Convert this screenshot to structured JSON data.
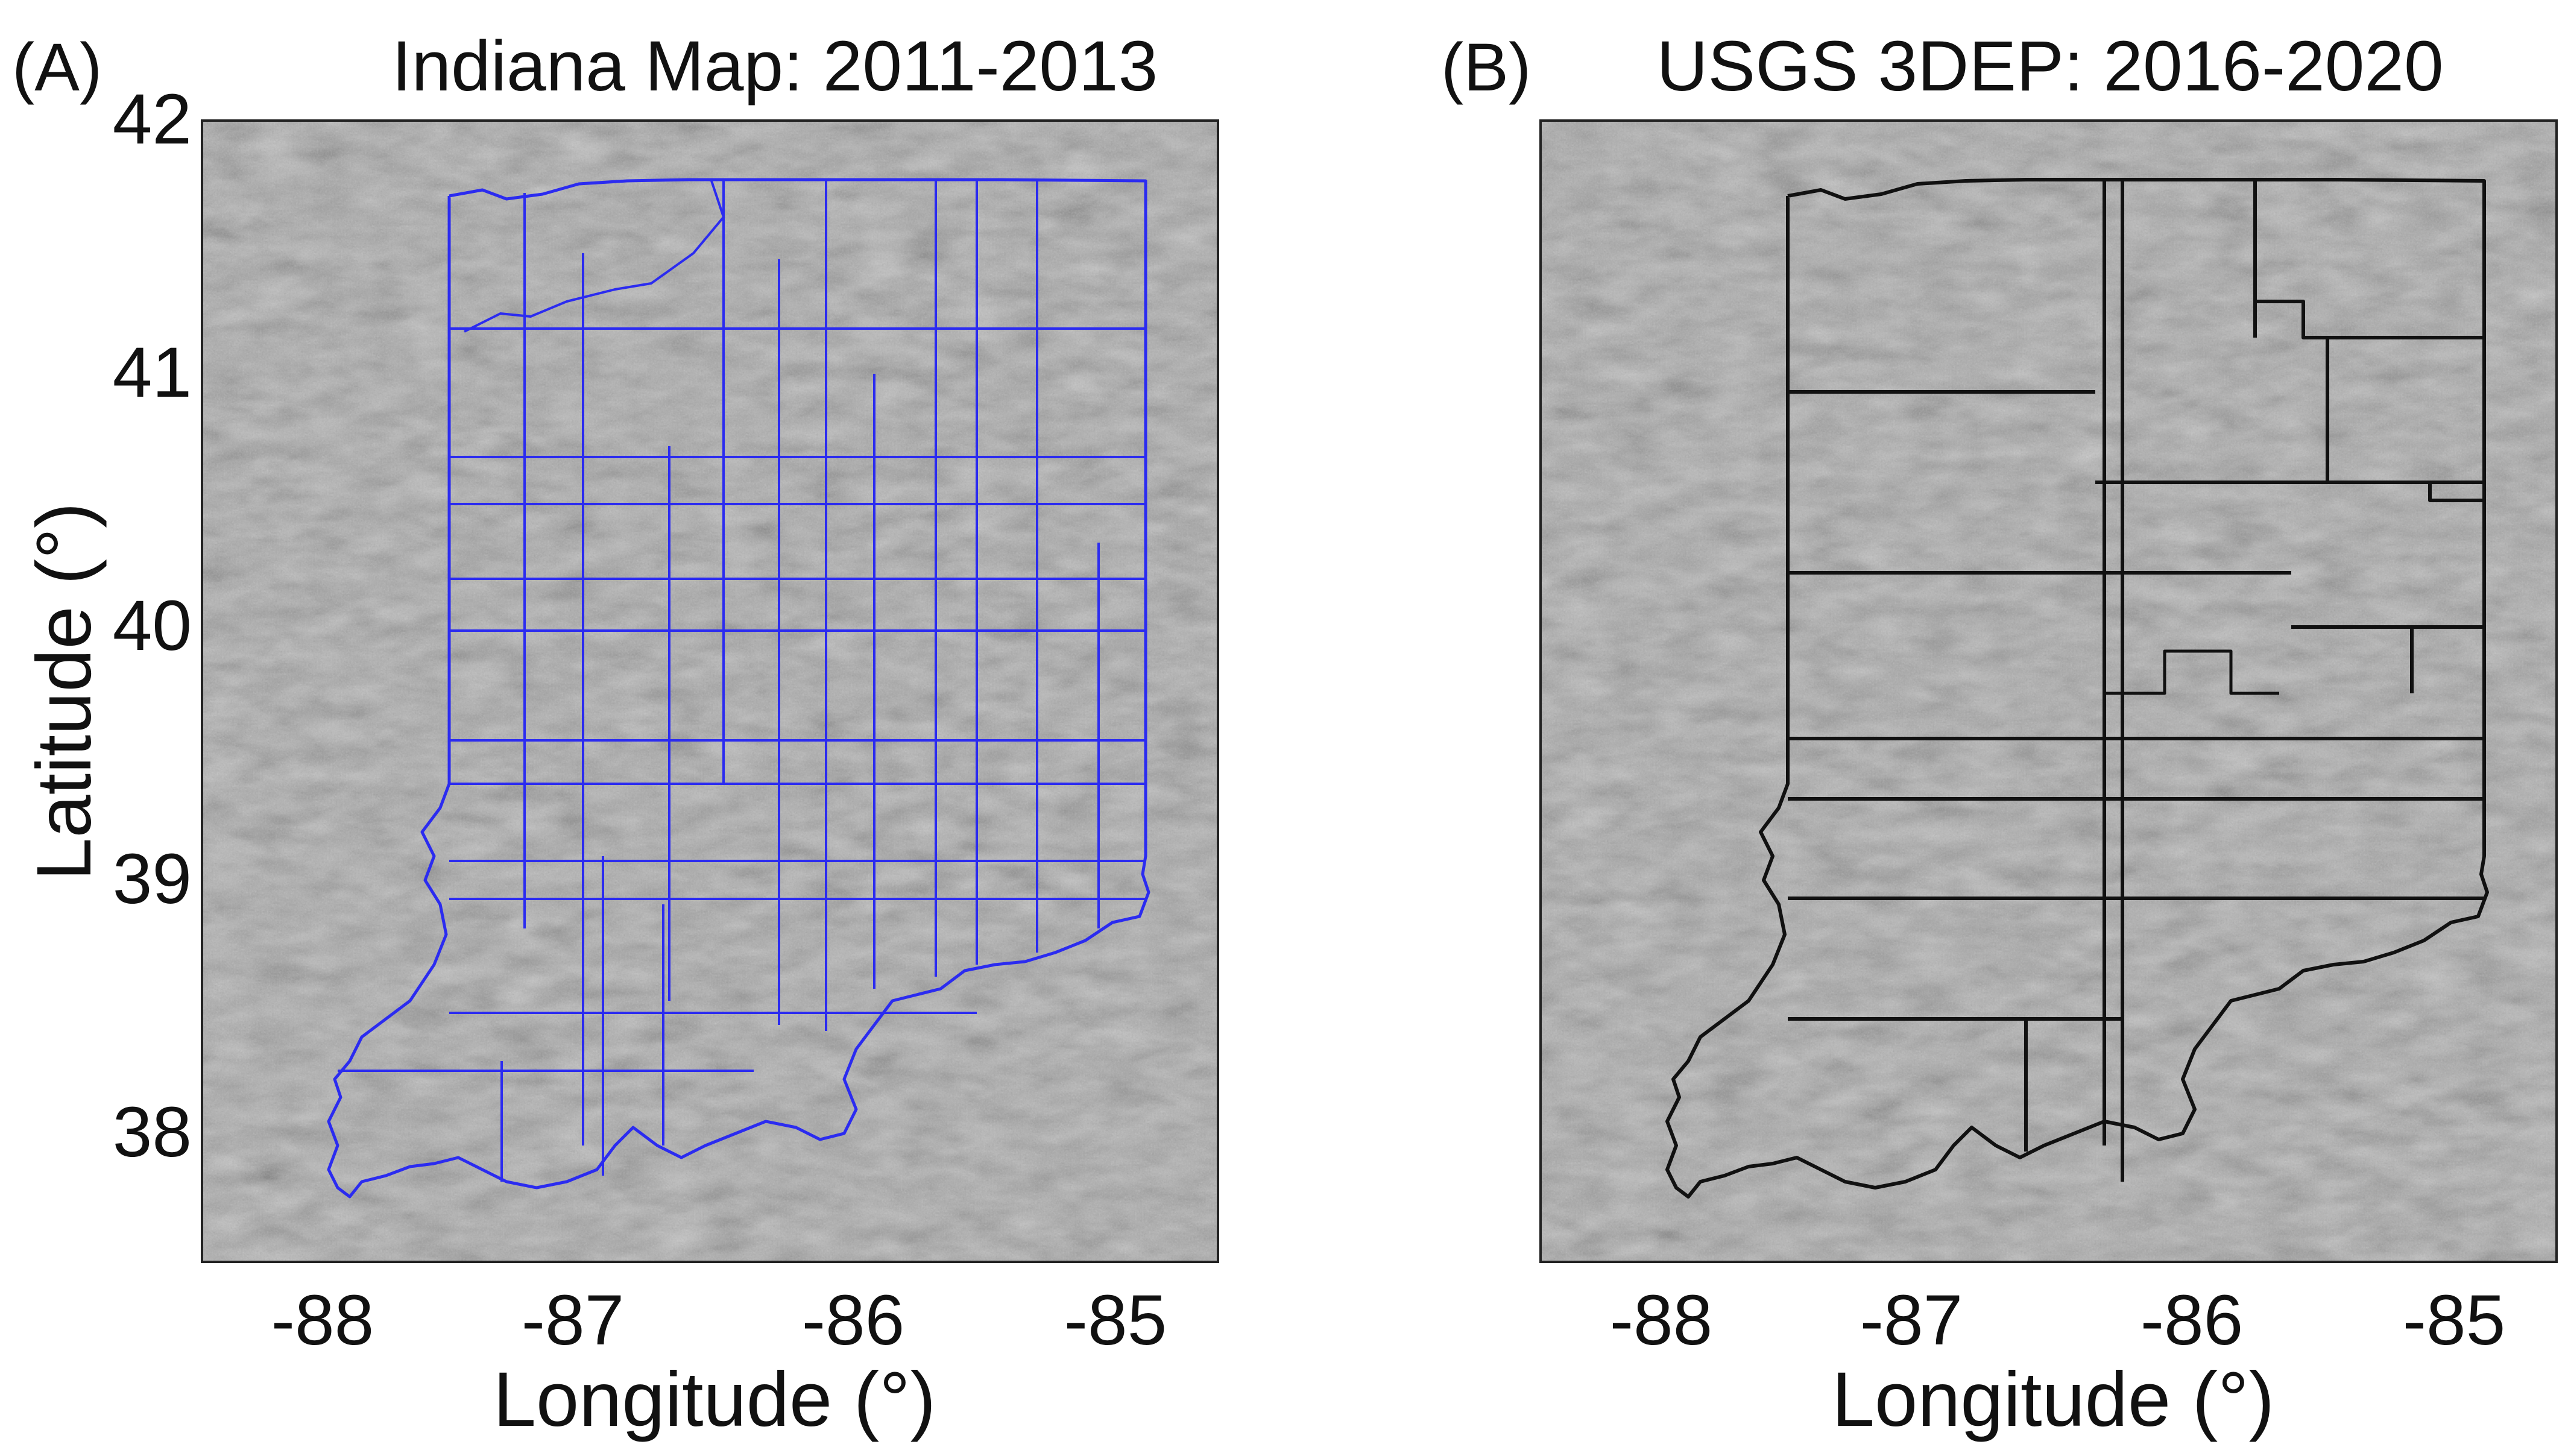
{
  "figure": {
    "panels": [
      {
        "letter": "(A)",
        "title": "Indiana Map: 2011-2013",
        "xlabel": "Longitude (°)",
        "ylabel": "Latitude (°)",
        "xticks": [
          "-88",
          "-87",
          "-86",
          "-85"
        ],
        "yticks": [
          "42",
          "41",
          "40",
          "39",
          "38"
        ],
        "tile_color": "#2b2bf0"
      },
      {
        "letter": "(B)",
        "title": "USGS 3DEP: 2016-2020",
        "xlabel": "Longitude (°)",
        "xticks": [
          "-88",
          "-87",
          "-86",
          "-85"
        ],
        "tile_color": "#111111"
      }
    ]
  },
  "map": {
    "extent": {
      "lon": [
        -88.5,
        -84.45
      ],
      "lat": [
        37.5,
        42.0
      ]
    },
    "background": "hillshade grayscale",
    "state": "Indiana"
  }
}
